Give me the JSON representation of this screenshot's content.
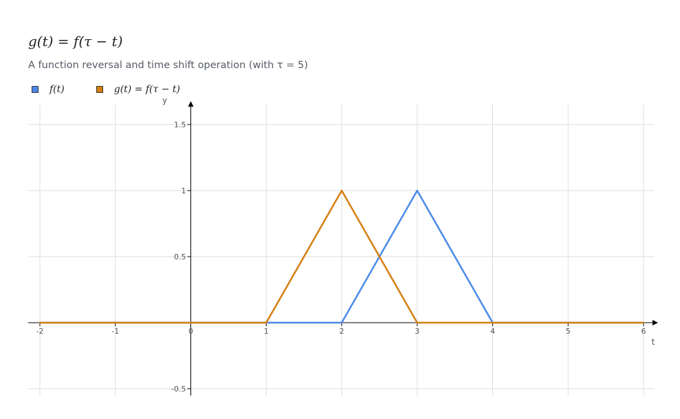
{
  "title": "g(t) = f(τ − t)",
  "subtitle": "A function reversal and time shift operation (with τ = 5)",
  "colors": {
    "grid": "#dddddd",
    "axis": "#000000",
    "tick_text": "#555555"
  },
  "chart_data": {
    "type": "line",
    "title": "g(t) = f(τ − t)",
    "subtitle": "A function reversal and time shift operation (with τ = 5)",
    "xlabel": "t",
    "ylabel": "y",
    "xlim": [
      -2,
      6
    ],
    "ylim": [
      -0.5,
      1.5
    ],
    "grid": true,
    "legend_position": "top-left",
    "x_ticks": [
      -2,
      -1,
      0,
      1,
      2,
      3,
      4,
      5,
      6
    ],
    "x_tick_labels": [
      "-2",
      "-1",
      "0",
      "1",
      "2",
      "3",
      "4",
      "5",
      "6"
    ],
    "y_ticks": [
      -0.5,
      0,
      0.5,
      1,
      1.5
    ],
    "y_tick_labels": [
      "-0.5",
      "",
      "0.5",
      "1",
      "1.5"
    ],
    "series": [
      {
        "name": "f(t)",
        "color": "#4a89e8",
        "x": [
          -2,
          2,
          3,
          4,
          6
        ],
        "y": [
          0,
          0,
          1,
          0,
          0
        ]
      },
      {
        "name": "g(t) = f(τ − t)",
        "color": "#d47f0f",
        "x": [
          -2,
          1,
          2,
          3,
          6
        ],
        "y": [
          0,
          0,
          1,
          0,
          0
        ]
      }
    ]
  }
}
